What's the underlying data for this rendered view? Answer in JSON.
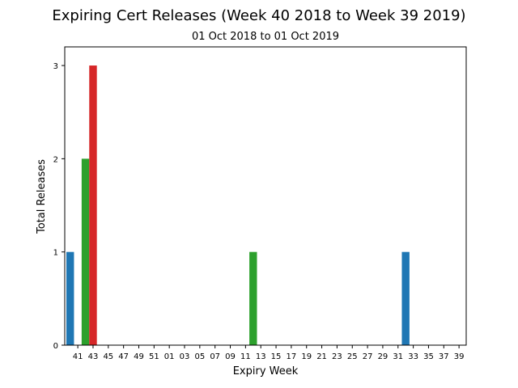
{
  "chart_data": {
    "type": "bar",
    "title": "Expiring Cert Releases (Week 40 2018 to Week 39 2019)",
    "subtitle": "01 Oct 2018 to 01 Oct 2019",
    "xlabel": "Expiry Week",
    "ylabel": "Total Releases",
    "ylim": [
      0,
      3.2
    ],
    "yticks": [
      0,
      1,
      2,
      3
    ],
    "grid": false,
    "categories": [
      "40",
      "41",
      "42",
      "43",
      "44",
      "45",
      "46",
      "47",
      "48",
      "49",
      "50",
      "51",
      "52",
      "01",
      "02",
      "03",
      "04",
      "05",
      "06",
      "07",
      "08",
      "09",
      "10",
      "11",
      "12",
      "13",
      "14",
      "15",
      "16",
      "17",
      "18",
      "19",
      "20",
      "21",
      "22",
      "23",
      "24",
      "25",
      "26",
      "27",
      "28",
      "29",
      "30",
      "31",
      "32",
      "33",
      "34",
      "35",
      "36",
      "37",
      "38",
      "39"
    ],
    "xtick_labels": [
      "41",
      "43",
      "45",
      "47",
      "49",
      "51",
      "01",
      "03",
      "05",
      "07",
      "09",
      "11",
      "13",
      "15",
      "17",
      "19",
      "21",
      "23",
      "25",
      "27",
      "29",
      "31",
      "33",
      "35",
      "37",
      "39"
    ],
    "values": [
      1,
      0,
      2,
      3,
      0,
      0,
      0,
      0,
      0,
      0,
      0,
      0,
      0,
      0,
      0,
      0,
      0,
      0,
      0,
      0,
      0,
      0,
      0,
      0,
      1,
      0,
      0,
      0,
      0,
      0,
      0,
      0,
      0,
      0,
      0,
      0,
      0,
      0,
      0,
      0,
      0,
      0,
      0,
      0,
      1,
      0,
      0,
      0,
      0,
      0,
      0,
      0
    ],
    "bar_colors": {
      "40": "#1f77b4",
      "42": "#2ca02c",
      "43": "#d62728",
      "12": "#2ca02c",
      "32": "#1f77b4"
    }
  }
}
